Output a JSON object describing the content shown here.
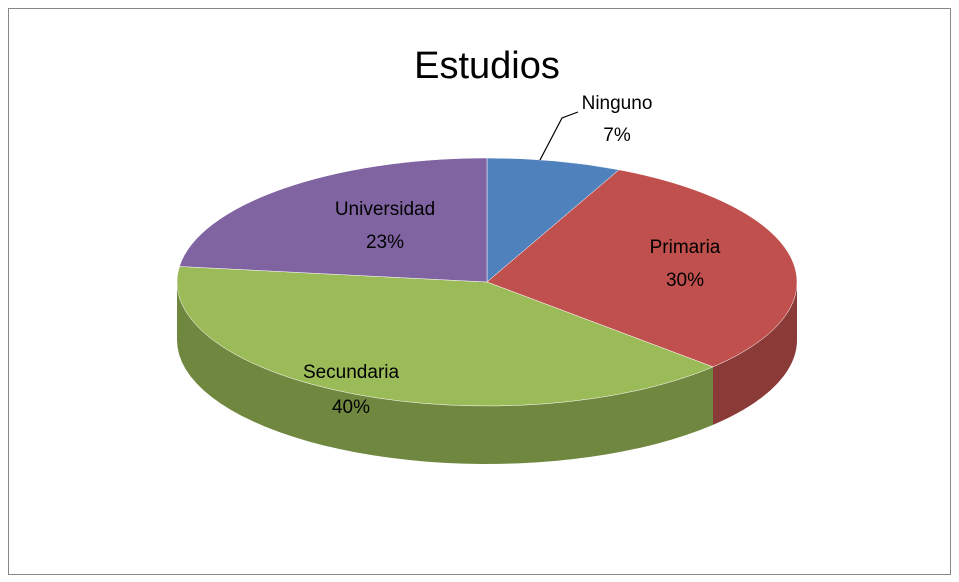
{
  "chart_data": {
    "type": "pie3d",
    "title": "Estudios",
    "categories": [
      "Ninguno",
      "Primaria",
      "Secundaria",
      "Universidad"
    ],
    "values": [
      7,
      30,
      40,
      23
    ],
    "value_labels": [
      "7%",
      "30%",
      "40%",
      "23%"
    ],
    "colors": [
      "#4f81bd",
      "#c0504d",
      "#9bbb59",
      "#8064a2"
    ]
  }
}
